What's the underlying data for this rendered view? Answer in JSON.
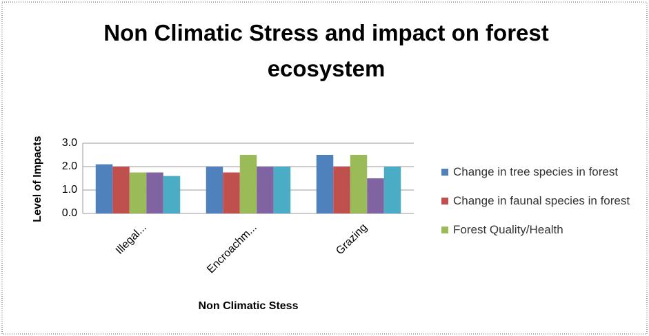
{
  "chart_data": {
    "type": "bar",
    "title": "Non Climatic Stress and impact on forest ecosystem",
    "x_label": "Non Climatic Stess",
    "y_label": "Level of Impacts",
    "categories": [
      "Illegal...",
      "Encroachm...",
      "Grazing"
    ],
    "series": [
      {
        "name": "Change in tree species in forest",
        "color": "#4f81bd",
        "values": [
          2.1,
          2.0,
          2.5
        ]
      },
      {
        "name": "Change in faunal species in forest",
        "color": "#c0504d",
        "values": [
          2.0,
          1.75,
          2.0
        ]
      },
      {
        "name": "Forest Quality/Health",
        "color": "#9bbb59",
        "values": [
          1.75,
          2.5,
          2.5
        ]
      },
      {
        "color": "#8064a2",
        "values": [
          1.75,
          2.0,
          1.5
        ]
      },
      {
        "color": "#4bacc6",
        "values": [
          1.6,
          2.0,
          2.0
        ]
      }
    ],
    "ylim": [
      0,
      3
    ],
    "yticks": [
      {
        "value": 0,
        "label": "0.0"
      },
      {
        "value": 1,
        "label": "1.0"
      },
      {
        "value": 2,
        "label": "2.0"
      },
      {
        "value": 3,
        "label": "3.0"
      }
    ],
    "grid": true
  }
}
